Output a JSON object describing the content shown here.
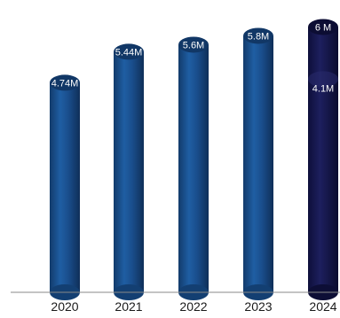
{
  "chart_data": {
    "type": "bar",
    "title": "",
    "xlabel": "",
    "ylabel": "",
    "categories": [
      "2020",
      "2021",
      "2022",
      "2023",
      "2024"
    ],
    "values": [
      4.74,
      5.44,
      5.6,
      5.8,
      6
    ],
    "value_labels": [
      "4.74M",
      "5.44M",
      "5.6M",
      "5.8M",
      "6 M"
    ],
    "extra_labels": [
      {
        "category": "2024",
        "value": 4.1,
        "label": "4.1M"
      }
    ],
    "ylim": [
      0,
      6.25
    ],
    "grid": false,
    "legend": "none",
    "style": "3d-cylinder",
    "colors": {
      "bar": "#1a4f8e",
      "bar_dark": "#113766",
      "bar_light": "#2a6bb0",
      "highlight_bar": "#16174f",
      "highlight_top": "#0c0d33",
      "baseline": "#888888",
      "label_text": "#ffffff",
      "tick_text": "#1a1a1a"
    }
  }
}
